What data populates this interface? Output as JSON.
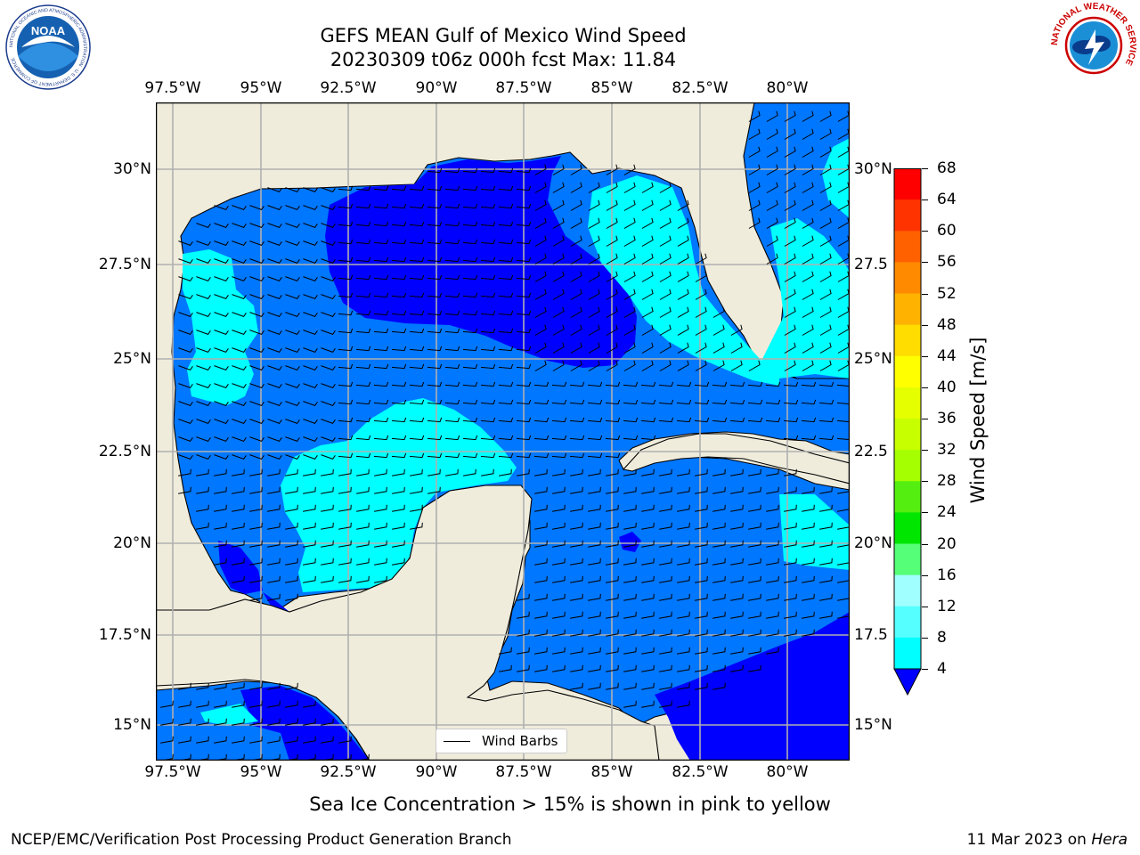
{
  "title": {
    "line1": "GEFS MEAN Gulf of Mexico Wind Speed",
    "line2": "20230309 t06z 000h fcst   Max: 11.84"
  },
  "map": {
    "lon_ticks": [
      "97.5°W",
      "95°W",
      "92.5°W",
      "90°W",
      "87.5°W",
      "85°W",
      "82.5°W",
      "80°W"
    ],
    "lat_ticks_left": [
      "30°N",
      "27.5°N",
      "25°N",
      "22.5°N",
      "20°N",
      "17.5°N",
      "15°N"
    ],
    "lat_ticks_right": [
      "30°N",
      "27.5",
      "25°N",
      "22.5",
      "20°N",
      "17.5",
      "15°N"
    ],
    "legend_label": "Wind Barbs",
    "land_color": "#efecdc",
    "grid_color": "#b0b0b0"
  },
  "colorbar": {
    "label": "Wind Speed [m/s]",
    "ticks": [
      "68",
      "64",
      "60",
      "56",
      "52",
      "48",
      "44",
      "40",
      "36",
      "32",
      "28",
      "24",
      "20",
      "16",
      "12",
      "8",
      "4"
    ],
    "colors": [
      "#ff0000",
      "#ff3300",
      "#ff6000",
      "#ff8a00",
      "#ffb300",
      "#ffdd00",
      "#ffff00",
      "#e6ff00",
      "#c8ff00",
      "#a5ff00",
      "#55ee11",
      "#00e600",
      "#55ff77",
      "#a0ffff",
      "#55ffff",
      "#00ffff",
      "#0077ff"
    ],
    "extend_color": "#0000ff"
  },
  "caption": "Sea Ice Concentration > 15% is shown in pink to yellow",
  "footer": {
    "left": "NCEP/EMC/Verification Post Processing Product Generation Branch",
    "right_prefix": "11 Mar 2023 on ",
    "right_host": "Hera"
  },
  "logos": {
    "noaa_text": "NOAA",
    "noaa_ring": "NATIONAL OCEANIC AND ATMOSPHERIC ADMINISTRATION · U.S. DEPARTMENT OF COMMERCE",
    "nws_ring": "NATIONAL WEATHER SERVICE"
  }
}
